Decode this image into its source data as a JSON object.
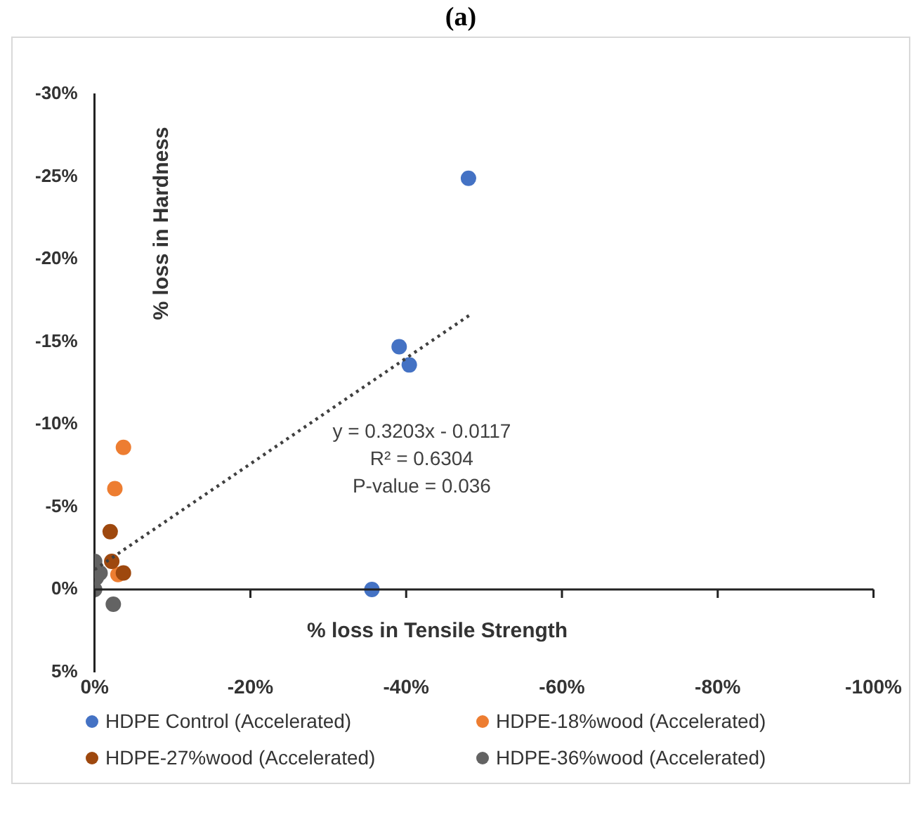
{
  "chart_data": {
    "type": "scatter",
    "title": "(a)",
    "xlabel": "% loss in Tensile Strength",
    "ylabel": "% loss in Hardness",
    "xlim": [
      0,
      -100
    ],
    "xticks": [
      {
        "value": 0,
        "label": "0%"
      },
      {
        "value": -20,
        "label": "-20%"
      },
      {
        "value": -40,
        "label": "-40%"
      },
      {
        "value": -60,
        "label": "-60%"
      },
      {
        "value": -80,
        "label": "-80%"
      },
      {
        "value": -100,
        "label": "-100%"
      }
    ],
    "ylim": [
      5,
      -30
    ],
    "yticks": [
      {
        "value": 5,
        "label": "5%"
      },
      {
        "value": 0,
        "label": "0%"
      },
      {
        "value": -5,
        "label": "-5%"
      },
      {
        "value": -10,
        "label": "-10%"
      },
      {
        "value": -15,
        "label": "-15%"
      },
      {
        "value": -20,
        "label": "-20%"
      },
      {
        "value": -25,
        "label": "-25%"
      },
      {
        "value": -30,
        "label": "-30%"
      }
    ],
    "marker": "circle",
    "legend": "bottom",
    "annotations": [
      "y = 0.3203x - 0.0117",
      "R² = 0.6304",
      "P-value = 0.036"
    ],
    "series": [
      {
        "name": "HDPE Control (Accelerated)",
        "color": "#4472c4",
        "x": [
          -48.0,
          -39.1,
          -40.4,
          -35.6
        ],
        "values": [
          -24.9,
          -14.7,
          -13.6,
          0
        ]
      },
      {
        "name": "HDPE-18%wood (Accelerated)",
        "color": "#ed7d31",
        "x": [
          -3.7,
          -2.6,
          -3.0
        ],
        "values": [
          -8.6,
          -6.1,
          -0.9
        ]
      },
      {
        "name": "HDPE-27%wood (Accelerated)",
        "color": "#9e480e",
        "x": [
          -2.0,
          -2.2,
          -3.7
        ],
        "values": [
          -3.5,
          -1.7,
          -1.0
        ]
      },
      {
        "name": "HDPE-36%wood (Accelerated)",
        "color": "#636363",
        "x": [
          0,
          -0.7,
          -0.2,
          0,
          -2.4
        ],
        "values": [
          -1.7,
          -1.0,
          -0.7,
          0,
          0.9
        ]
      },
      {
        "type": "line",
        "color": "#404040",
        "marker": "none",
        "line_style": "dotted",
        "x": [
          0,
          -48.1
        ],
        "values": [
          -1.2,
          -16.6
        ]
      }
    ]
  }
}
